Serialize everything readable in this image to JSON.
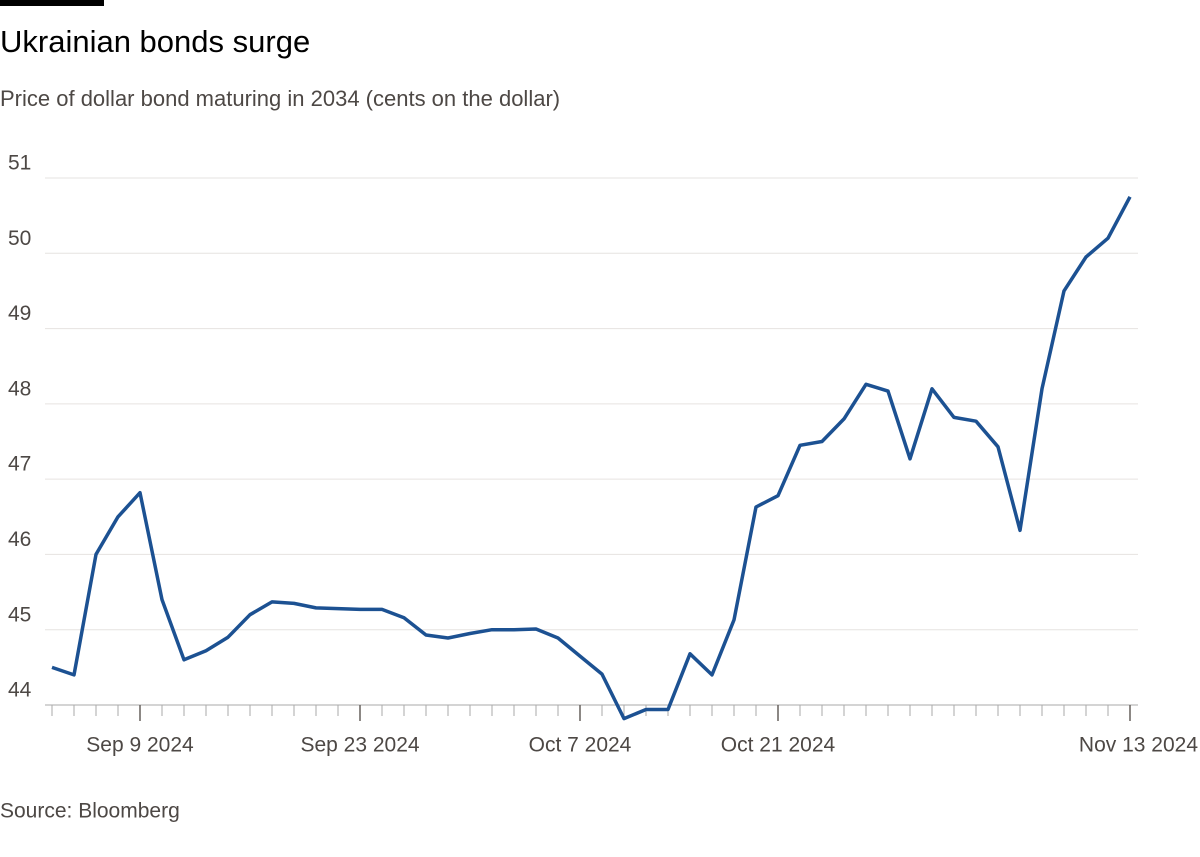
{
  "chart_data": {
    "type": "line",
    "title": "Ukrainian bonds surge",
    "subtitle": "Price of dollar bond maturing in 2034 (cents on the dollar)",
    "source": "Source: Bloomberg",
    "x": [
      "2024-09-03",
      "2024-09-04",
      "2024-09-05",
      "2024-09-06",
      "2024-09-09",
      "2024-09-10",
      "2024-09-11",
      "2024-09-12",
      "2024-09-13",
      "2024-09-16",
      "2024-09-17",
      "2024-09-18",
      "2024-09-19",
      "2024-09-20",
      "2024-09-23",
      "2024-09-24",
      "2024-09-25",
      "2024-09-26",
      "2024-09-27",
      "2024-09-30",
      "2024-10-01",
      "2024-10-02",
      "2024-10-03",
      "2024-10-04",
      "2024-10-07",
      "2024-10-08",
      "2024-10-09",
      "2024-10-10",
      "2024-10-11",
      "2024-10-15",
      "2024-10-16",
      "2024-10-17",
      "2024-10-18",
      "2024-10-21",
      "2024-10-22",
      "2024-10-23",
      "2024-10-24",
      "2024-10-25",
      "2024-10-28",
      "2024-10-29",
      "2024-10-30",
      "2024-10-31",
      "2024-11-01",
      "2024-11-04",
      "2024-11-05",
      "2024-11-06",
      "2024-11-07",
      "2024-11-08",
      "2024-11-12",
      "2024-11-13"
    ],
    "series": [
      {
        "name": "Price",
        "color": "#1c5192",
        "values": [
          44.5,
          44.4,
          46.0,
          46.5,
          46.82,
          45.4,
          44.6,
          44.72,
          44.9,
          45.2,
          45.37,
          45.35,
          45.29,
          45.28,
          45.27,
          45.27,
          45.16,
          44.93,
          44.89,
          44.95,
          45.0,
          45.0,
          45.01,
          44.89,
          44.65,
          44.41,
          43.82,
          43.94,
          43.94,
          44.68,
          44.4,
          45.13,
          46.63,
          46.78,
          47.45,
          47.5,
          47.8,
          48.26,
          48.17,
          47.27,
          48.2,
          47.82,
          47.77,
          47.43,
          46.32,
          48.2,
          49.5,
          49.95,
          50.2,
          50.75
        ]
      }
    ],
    "xticks": [
      {
        "value": "2024-09-09",
        "label": "Sep 9 2024"
      },
      {
        "value": "2024-09-23",
        "label": "Sep 23 2024"
      },
      {
        "value": "2024-10-07",
        "label": "Oct 7 2024"
      },
      {
        "value": "2024-10-21",
        "label": "Oct 21 2024"
      },
      {
        "value": "2024-11-13",
        "label": "Nov 13 2024"
      }
    ],
    "ylim": [
      44,
      51
    ],
    "yticks": [
      44,
      45,
      46,
      47,
      48,
      49,
      50,
      51
    ],
    "grid": true
  }
}
